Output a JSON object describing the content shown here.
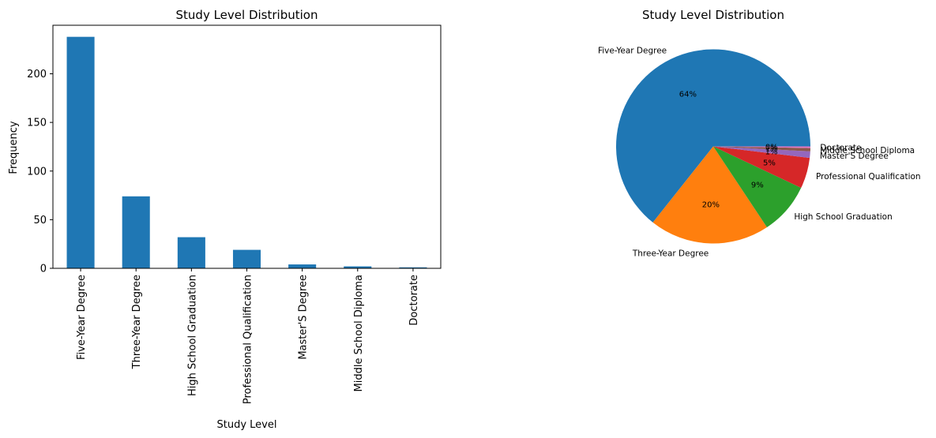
{
  "chart_data": [
    {
      "type": "bar",
      "title": "Study Level Distribution",
      "xlabel": "Study Level",
      "ylabel": "Frequency",
      "categories": [
        "Five-Year Degree",
        "Three-Year Degree",
        "High School Graduation",
        "Professional Qualification",
        "Master'S Degree",
        "Middle School Diploma",
        "Doctorate"
      ],
      "values": [
        238,
        74,
        32,
        19,
        4,
        2,
        1
      ],
      "ylim": [
        0,
        249.9
      ],
      "yticks": [
        0,
        50,
        100,
        150,
        200
      ],
      "color": "#1f77b4",
      "grid": false
    },
    {
      "type": "pie",
      "title": "Study Level Distribution",
      "labels": [
        "Five-Year Degree",
        "Three-Year Degree",
        "High School Graduation",
        "Professional Qualification",
        "Master'S Degree",
        "Middle School Diploma",
        "Doctorate"
      ],
      "values": [
        238,
        74,
        32,
        19,
        4,
        2,
        1
      ],
      "percent_labels": [
        "64%",
        "20%",
        "9%",
        "5%",
        "1%",
        "1%",
        "0%"
      ],
      "colors": [
        "#1f77b4",
        "#ff7f0e",
        "#2ca02c",
        "#d62728",
        "#9467bd",
        "#8c564b",
        "#e377c2"
      ]
    }
  ]
}
